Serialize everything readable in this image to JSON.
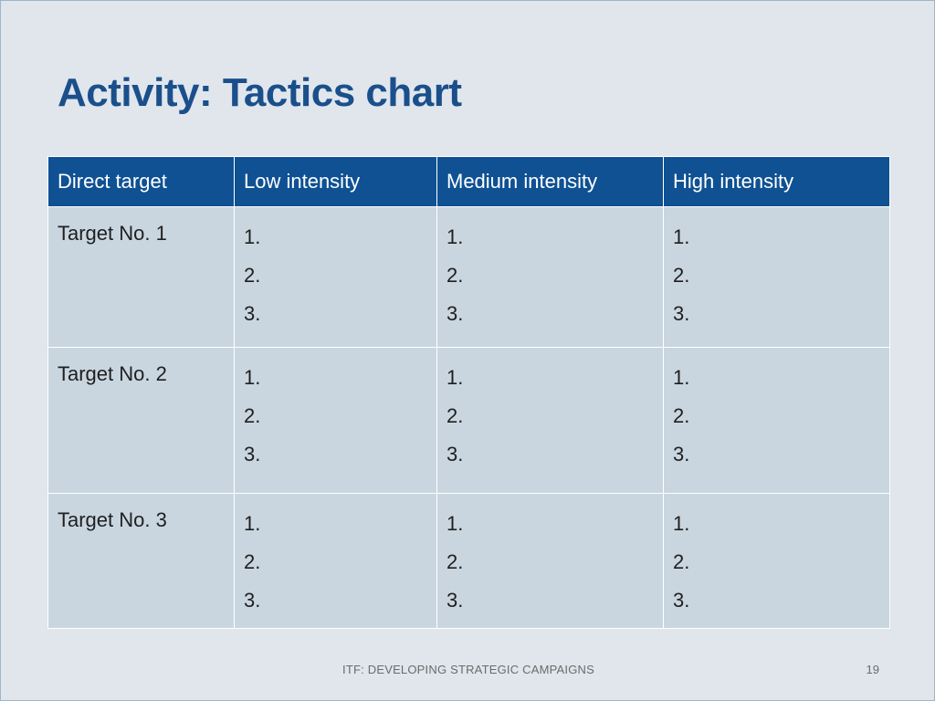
{
  "slide": {
    "title": "Activity: Tactics chart",
    "footer": "ITF: DEVELOPING STRATEGIC CAMPAIGNS",
    "page_number": "19"
  },
  "table": {
    "headers": [
      "Direct target",
      "Low intensity",
      "Medium intensity",
      "High intensity"
    ],
    "rows": [
      {
        "target": "Target No. 1",
        "cells": [
          [
            "1.",
            "2.",
            "3."
          ],
          [
            "1.",
            "2.",
            "3."
          ],
          [
            "1.",
            "2.",
            "3."
          ]
        ]
      },
      {
        "target": "Target No. 2",
        "cells": [
          [
            "1.",
            "2.",
            "3."
          ],
          [
            "1.",
            "2.",
            "3."
          ],
          [
            "1.",
            "2.",
            "3."
          ]
        ]
      },
      {
        "target": "Target No. 3",
        "cells": [
          [
            "1.",
            "2.",
            "3."
          ],
          [
            "1.",
            "2.",
            "3."
          ],
          [
            "1.",
            "2.",
            "3."
          ]
        ]
      }
    ]
  }
}
